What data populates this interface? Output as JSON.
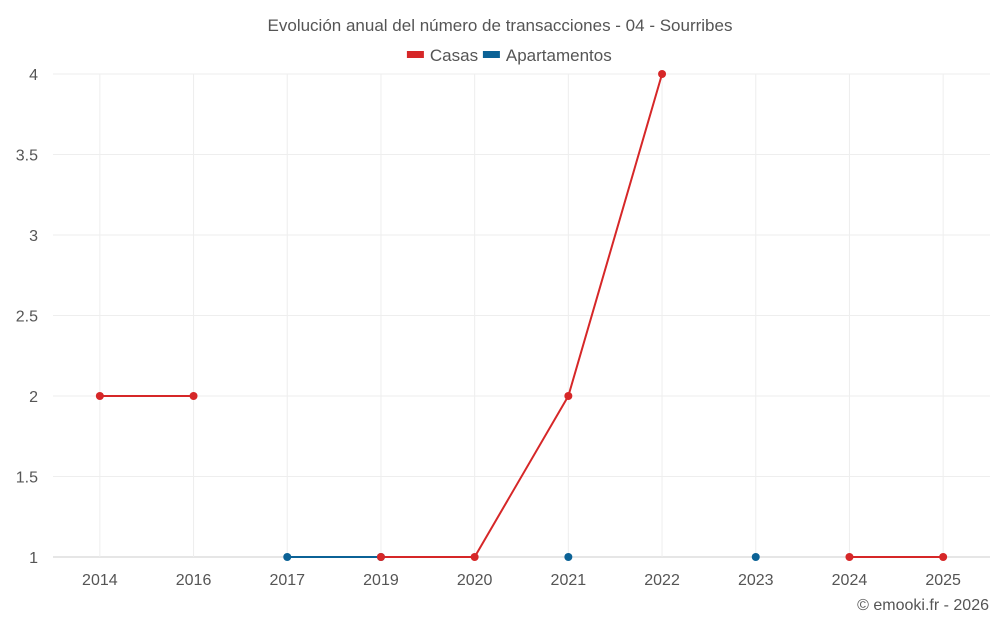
{
  "chart_data": {
    "type": "line",
    "title": "Evolución anual del número de transacciones - 04 - Sourribes",
    "categories": [
      "2014",
      "2016",
      "2017",
      "2019",
      "2020",
      "2021",
      "2022",
      "2023",
      "2024",
      "2025"
    ],
    "xlabel": "",
    "ylabel": "",
    "ylim": [
      1,
      4
    ],
    "yticks": [
      "1",
      "1.5",
      "2",
      "2.5",
      "3",
      "3.5",
      "4"
    ],
    "grid": true,
    "legend_position": "top-center",
    "series": [
      {
        "name": "Casas",
        "color": "#d62728",
        "values": [
          2,
          2,
          null,
          1,
          1,
          2,
          4,
          null,
          1,
          1
        ]
      },
      {
        "name": "Apartamentos",
        "color": "#0b6296",
        "values": [
          null,
          null,
          1,
          1,
          null,
          1,
          null,
          1,
          null,
          null
        ]
      }
    ]
  },
  "credit": "© emooki.fr - 2026"
}
